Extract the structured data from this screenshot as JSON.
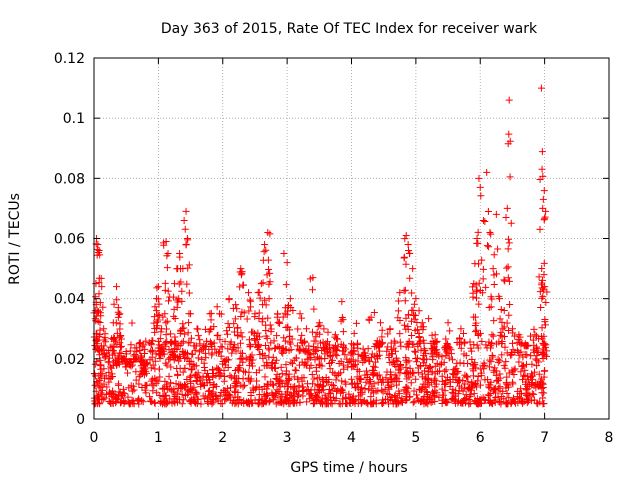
{
  "chart_data": {
    "type": "scatter",
    "title": "Day 363 of 2015, Rate Of TEC Index for receiver wark",
    "xlabel": "GPS time / hours",
    "ylabel": "ROTI / TECUs",
    "xlim": [
      0,
      8
    ],
    "ylim": [
      0,
      0.12
    ],
    "x_ticks": [
      "0",
      "1",
      "2",
      "3",
      "4",
      "5",
      "6",
      "7",
      "8"
    ],
    "y_ticks": [
      "0",
      "0.02",
      "0.04",
      "0.06",
      "0.08",
      "0.1",
      "0.12"
    ],
    "grid": true,
    "marker": "+",
    "color": "#ff0000",
    "series": [
      {
        "points": [
          [
            0.02,
            0.036
          ],
          [
            0.03,
            0.045
          ],
          [
            0.04,
            0.06
          ],
          [
            0.06,
            0.058
          ],
          [
            0.08,
            0.056
          ],
          [
            0.05,
            0.025
          ],
          [
            0.1,
            0.015
          ],
          [
            0.12,
            0.044
          ],
          [
            0.15,
            0.03
          ],
          [
            0.2,
            0.022
          ],
          [
            0.3,
            0.032
          ],
          [
            0.35,
            0.044
          ],
          [
            0.4,
            0.035
          ],
          [
            0.45,
            0.02
          ],
          [
            0.55,
            0.018
          ],
          [
            0.65,
            0.02
          ],
          [
            0.75,
            0.024
          ],
          [
            0.8,
            0.018
          ],
          [
            0.9,
            0.026
          ],
          [
            0.97,
            0.04
          ],
          [
            1.0,
            0.044
          ],
          [
            1.05,
            0.03
          ],
          [
            1.1,
            0.035
          ],
          [
            1.12,
            0.059
          ],
          [
            1.15,
            0.055
          ],
          [
            1.2,
            0.025
          ],
          [
            1.25,
            0.045
          ],
          [
            1.3,
            0.05
          ],
          [
            1.33,
            0.055
          ],
          [
            1.38,
            0.05
          ],
          [
            1.4,
            0.066
          ],
          [
            1.43,
            0.069
          ],
          [
            1.45,
            0.06
          ],
          [
            1.5,
            0.035
          ],
          [
            1.6,
            0.03
          ],
          [
            1.8,
            0.035
          ],
          [
            1.95,
            0.035
          ],
          [
            2.1,
            0.04
          ],
          [
            2.2,
            0.038
          ],
          [
            2.28,
            0.05
          ],
          [
            2.3,
            0.049
          ],
          [
            2.4,
            0.042
          ],
          [
            2.5,
            0.035
          ],
          [
            2.55,
            0.042
          ],
          [
            2.6,
            0.045
          ],
          [
            2.65,
            0.058
          ],
          [
            2.7,
            0.062
          ],
          [
            2.72,
            0.04
          ],
          [
            2.85,
            0.035
          ],
          [
            2.95,
            0.055
          ],
          [
            3.0,
            0.052
          ],
          [
            3.05,
            0.04
          ],
          [
            3.2,
            0.035
          ],
          [
            3.3,
            0.03
          ],
          [
            3.4,
            0.047
          ],
          [
            3.5,
            0.032
          ],
          [
            3.6,
            0.025
          ],
          [
            3.75,
            0.028
          ],
          [
            3.85,
            0.039
          ],
          [
            4.0,
            0.025
          ],
          [
            4.2,
            0.022
          ],
          [
            4.4,
            0.026
          ],
          [
            4.45,
            0.032
          ],
          [
            4.6,
            0.03
          ],
          [
            4.75,
            0.042
          ],
          [
            4.85,
            0.061
          ],
          [
            4.88,
            0.058
          ],
          [
            4.9,
            0.055
          ],
          [
            4.95,
            0.05
          ],
          [
            5.0,
            0.04
          ],
          [
            5.05,
            0.036
          ],
          [
            5.1,
            0.032
          ],
          [
            5.3,
            0.028
          ],
          [
            5.5,
            0.032
          ],
          [
            5.7,
            0.03
          ],
          [
            5.9,
            0.045
          ],
          [
            5.95,
            0.06
          ],
          [
            5.98,
            0.08
          ],
          [
            6.0,
            0.077
          ],
          [
            6.05,
            0.066
          ],
          [
            6.1,
            0.082
          ],
          [
            6.15,
            0.062
          ],
          [
            6.2,
            0.05
          ],
          [
            6.25,
            0.068
          ],
          [
            6.3,
            0.04
          ],
          [
            6.35,
            0.03
          ],
          [
            6.4,
            0.067
          ],
          [
            6.42,
            0.07
          ],
          [
            6.45,
            0.106
          ],
          [
            6.5,
            0.03
          ],
          [
            6.6,
            0.028
          ],
          [
            6.7,
            0.025
          ],
          [
            6.85,
            0.028
          ],
          [
            6.95,
            0.11
          ],
          [
            6.96,
            0.083
          ],
          [
            6.97,
            0.07
          ],
          [
            6.98,
            0.073
          ],
          [
            6.99,
            0.048
          ],
          [
            7.0,
            0.044
          ],
          [
            7.0,
            0.025
          ]
        ],
        "dense_band": {
          "x_range": [
            0,
            7
          ],
          "y_min": 0.002,
          "y_typical": [
            0.005,
            0.02
          ]
        }
      }
    ]
  }
}
